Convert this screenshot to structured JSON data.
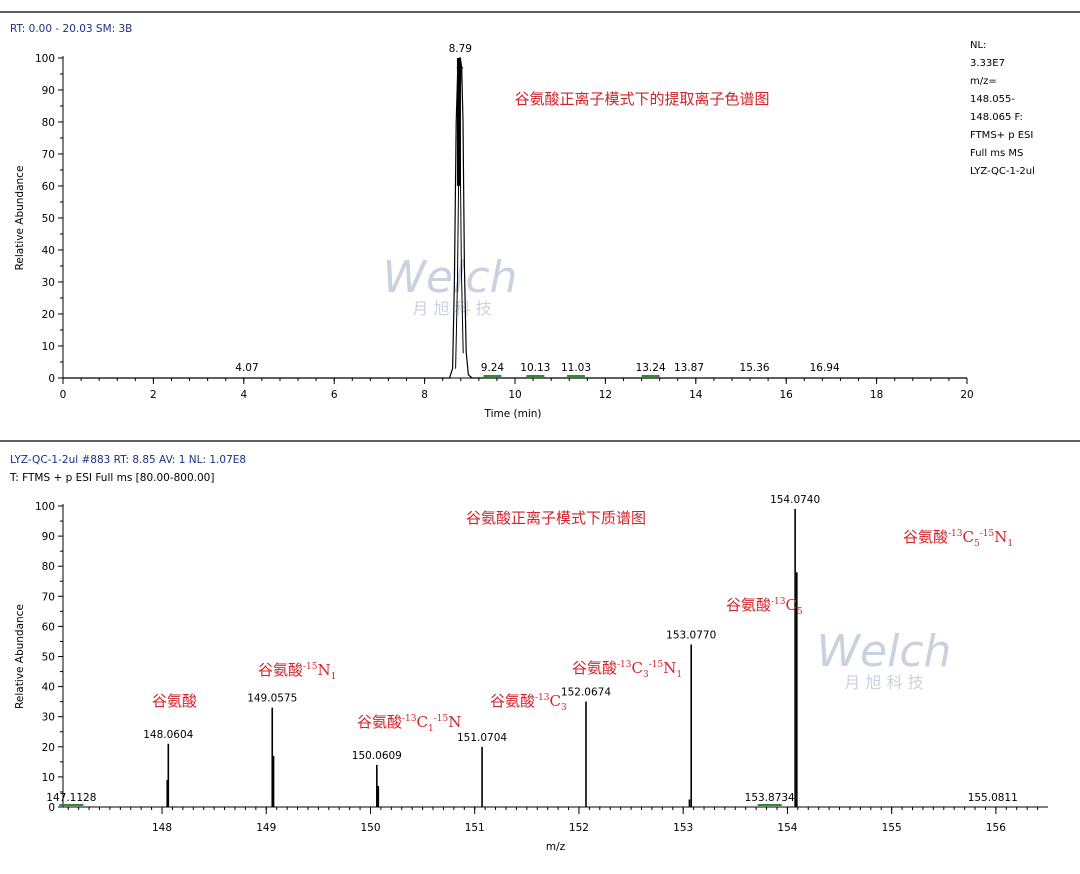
{
  "colors": {
    "header": "#1c2f86",
    "annotation": "#d2232a",
    "peak_underline": "#2e8b2e",
    "watermark": "#c9d2de"
  },
  "watermark": {
    "logo_text": "Welch",
    "sub_text": "月 旭 科 技"
  },
  "chart_data": [
    {
      "type": "line",
      "header": "RT: 0.00 - 20.03   SM: 3B",
      "title": "谷氨酸正离子模式下的提取离子色谱图",
      "xlabel": "Time (min)",
      "ylabel": "Relative Abundance",
      "xlim": [
        0,
        20
      ],
      "ylim": [
        0,
        100
      ],
      "x_ticks": [
        "0",
        "2",
        "4",
        "6",
        "8",
        "10",
        "12",
        "14",
        "16",
        "18",
        "20"
      ],
      "y_ticks": [
        "0",
        "10",
        "20",
        "30",
        "40",
        "50",
        "60",
        "70",
        "80",
        "90",
        "100"
      ],
      "info_lines": [
        "NL:",
        "3.33E7",
        "m/z=",
        "148.055-",
        "148.065 F:",
        "FTMS+ p ESI",
        "Full ms  MS",
        "LYZ-QC-1-2ul"
      ],
      "series": [
        {
          "x": [
            0,
            8.55,
            8.62,
            8.66,
            8.7,
            8.74,
            8.77,
            8.79,
            8.82,
            8.85,
            8.88,
            8.92,
            8.97,
            9.05,
            20
          ],
          "y": [
            0,
            0,
            3,
            30,
            80,
            99,
            100,
            100,
            97,
            80,
            35,
            8,
            1,
            0,
            0
          ]
        }
      ],
      "peak_labels": [
        {
          "label": "8.79",
          "x": 8.79,
          "y": 100,
          "underline": false
        },
        {
          "label": "4.07",
          "x": 4.07,
          "y": 0,
          "underline": false
        },
        {
          "label": "9.24",
          "x": 9.5,
          "y": 0,
          "underline": true
        },
        {
          "label": "10.13",
          "x": 10.45,
          "y": 0,
          "underline": true
        },
        {
          "label": "11.03",
          "x": 11.35,
          "y": 0,
          "underline": true
        },
        {
          "label": "13.24",
          "x": 13.0,
          "y": 0,
          "underline": true
        },
        {
          "label": "13.87",
          "x": 13.85,
          "y": 0,
          "underline": false
        },
        {
          "label": "15.36",
          "x": 15.3,
          "y": 0,
          "underline": false
        },
        {
          "label": "16.94",
          "x": 16.85,
          "y": 0,
          "underline": false
        }
      ]
    },
    {
      "type": "bar",
      "header_line1": "LYZ-QC-1-2ul #883   RT: 8.85   AV: 1   NL: 1.07E8",
      "header_line2": "T: FTMS + p ESI Full ms [80.00-800.00]",
      "title": "谷氨酸正离子模式下质谱图",
      "xlabel": "m/z",
      "ylabel": "Relative Abundance",
      "xlim": [
        147.05,
        156.5
      ],
      "ylim": [
        0,
        100
      ],
      "x_ticks": [
        "148",
        "149",
        "150",
        "151",
        "152",
        "153",
        "154",
        "155",
        "156"
      ],
      "y_ticks": [
        "0",
        "10",
        "20",
        "30",
        "40",
        "50",
        "60",
        "70",
        "80",
        "90",
        "100"
      ],
      "peaks": [
        {
          "mz": 148.0604,
          "value": 21,
          "label": "148.0604"
        },
        {
          "mz": 148.05,
          "value": 9,
          "label": ""
        },
        {
          "mz": 149.0575,
          "value": 33,
          "label": "149.0575"
        },
        {
          "mz": 149.07,
          "value": 17,
          "label": ""
        },
        {
          "mz": 150.0609,
          "value": 14,
          "label": "150.0609"
        },
        {
          "mz": 150.075,
          "value": 7,
          "label": ""
        },
        {
          "mz": 151.0704,
          "value": 20,
          "label": "151.0704"
        },
        {
          "mz": 152.0674,
          "value": 35,
          "label": "152.0674"
        },
        {
          "mz": 153.077,
          "value": 54,
          "label": "153.0770"
        },
        {
          "mz": 153.06,
          "value": 2.5,
          "label": ""
        },
        {
          "mz": 154.074,
          "value": 99,
          "label": "154.0740"
        },
        {
          "mz": 154.09,
          "value": 78,
          "label": ""
        }
      ],
      "baseline_labels": [
        {
          "label": "147.1128",
          "mz": 147.13,
          "underline": true
        },
        {
          "label": "153.8734",
          "mz": 153.83,
          "underline": true
        },
        {
          "label": "155.0811",
          "mz": 155.97,
          "underline": false
        }
      ],
      "annotations": [
        {
          "base": "谷氨酸",
          "parts": []
        },
        {
          "base": "谷氨酸",
          "parts": [
            [
              "sup",
              "-15"
            ],
            [
              "",
              "N"
            ],
            [
              "sub",
              "1"
            ]
          ]
        },
        {
          "base": "谷氨酸",
          "parts": [
            [
              "sup",
              "-13"
            ],
            [
              "",
              "C"
            ],
            [
              "sub",
              "1"
            ],
            [
              "sup",
              "-15"
            ],
            [
              "",
              "N"
            ]
          ]
        },
        {
          "base": "谷氨酸",
          "parts": [
            [
              "sup",
              "-13"
            ],
            [
              "",
              "C"
            ],
            [
              "sub",
              "3"
            ]
          ]
        },
        {
          "base": "谷氨酸",
          "parts": [
            [
              "sup",
              "-13"
            ],
            [
              "",
              "C"
            ],
            [
              "sub",
              "3"
            ],
            [
              "sup",
              "-15"
            ],
            [
              "",
              "N"
            ],
            [
              "sub",
              "1"
            ]
          ]
        },
        {
          "base": "谷氨酸",
          "parts": [
            [
              "sup",
              "-13"
            ],
            [
              "",
              "C"
            ],
            [
              "sub",
              "5"
            ]
          ]
        },
        {
          "base": "谷氨酸",
          "parts": [
            [
              "sup",
              "-13"
            ],
            [
              "",
              "C"
            ],
            [
              "sub",
              "5"
            ],
            [
              "sup",
              "-15"
            ],
            [
              "",
              "N"
            ],
            [
              "sub",
              "1"
            ]
          ]
        }
      ]
    }
  ]
}
